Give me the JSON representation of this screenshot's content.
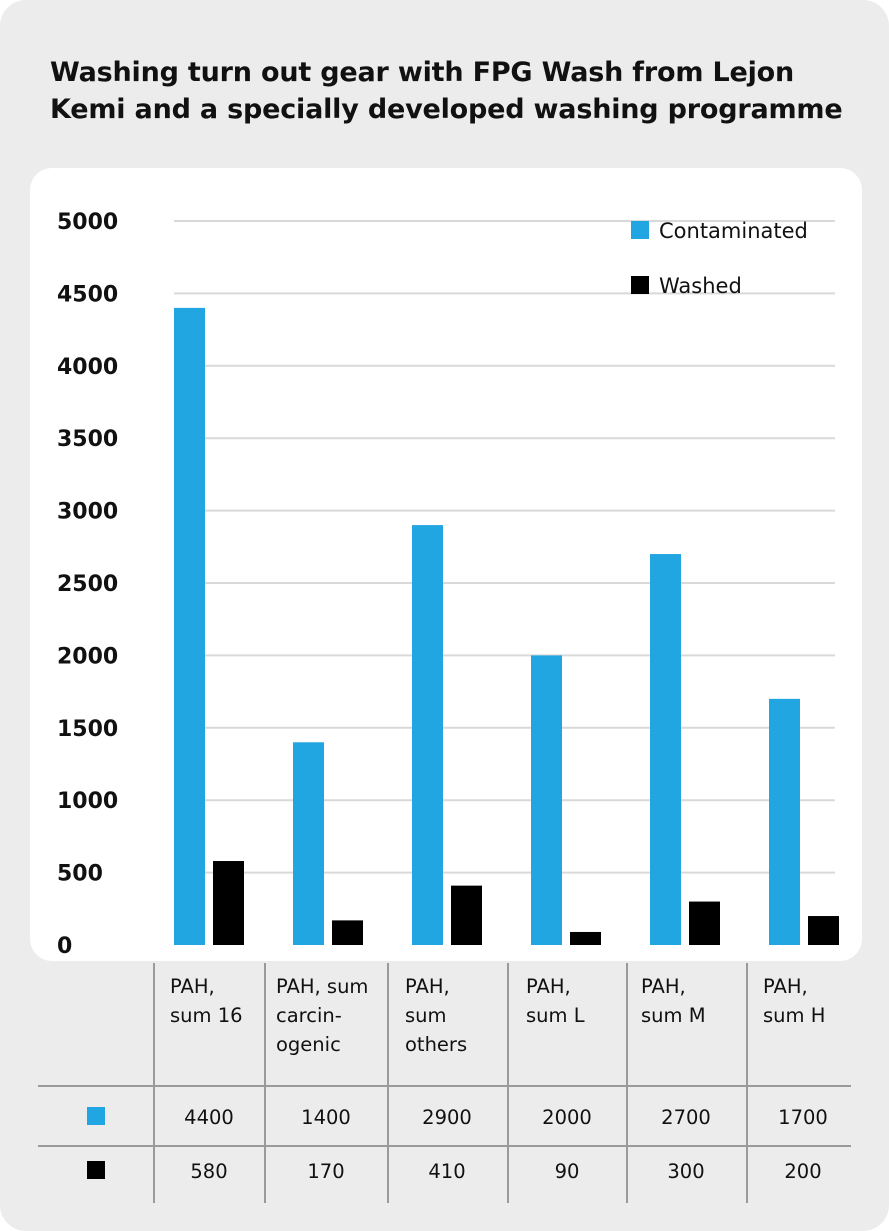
{
  "title": "Washing turn out gear with FPG Wash from Lejon Kemi and a specially developed washing programme",
  "colors": {
    "contaminated": "#22a6e2",
    "washed": "#000000",
    "grid": "#d9d9d9",
    "table_lines": "#9a9a9a"
  },
  "chart_data": {
    "type": "bar",
    "title": "Washing turn out gear with FPG Wash from Lejon Kemi and a specially developed washing programme",
    "categories": [
      "PAH,\nsum 16",
      "PAH, sum\ncarcin-\nogenic",
      "PAH,\nsum\nothers",
      "PAH,\nsum L",
      "PAH,\nsum M",
      "PAH,\nsum H"
    ],
    "series": [
      {
        "name": "Contaminated",
        "color": "#22a6e2",
        "values": [
          4400,
          1400,
          2900,
          2000,
          2700,
          1700
        ]
      },
      {
        "name": "Washed",
        "color": "#000000",
        "values": [
          580,
          170,
          410,
          90,
          300,
          200
        ]
      }
    ],
    "ylim": [
      0,
      5000
    ],
    "yticks": [
      "0",
      "500",
      "1000",
      "1500",
      "2000",
      "2500",
      "3000",
      "3500",
      "4000",
      "4500",
      "5000"
    ],
    "grid": true,
    "legend": "top-right"
  },
  "table": {
    "rows": [
      {
        "swatch_icon": "blue-square-icon",
        "values": [
          "4400",
          "1400",
          "2900",
          "2000",
          "2700",
          "1700"
        ]
      },
      {
        "swatch_icon": "black-square-icon",
        "values": [
          "580",
          "170",
          "410",
          "90",
          "300",
          "200"
        ]
      }
    ]
  }
}
